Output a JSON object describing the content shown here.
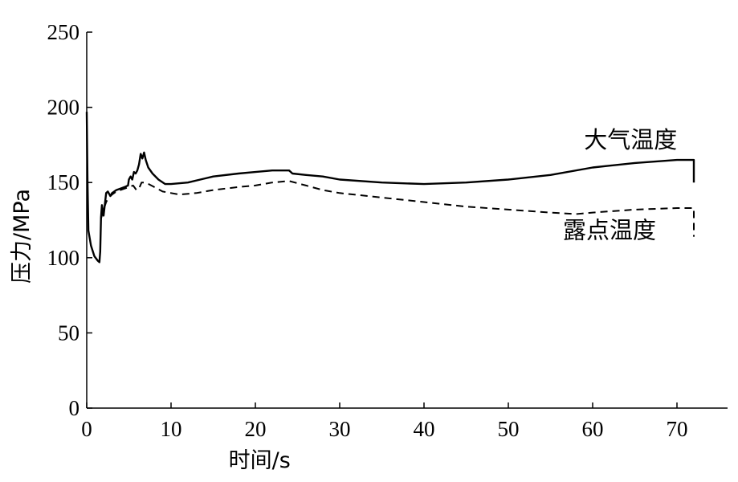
{
  "chart_data": {
    "type": "line",
    "xlabel": "时间/s",
    "ylabel": "压力/MPa",
    "xlim": [
      0,
      76
    ],
    "ylim": [
      0,
      250
    ],
    "xticks": [
      0,
      10,
      20,
      30,
      40,
      50,
      60,
      70
    ],
    "yticks": [
      0,
      50,
      100,
      150,
      200,
      250
    ],
    "grid": false,
    "series": [
      {
        "name": "大气温度",
        "style": "solid",
        "color": "#000000",
        "points": [
          [
            0,
            197
          ],
          [
            0.1,
            150
          ],
          [
            0.2,
            118
          ],
          [
            0.5,
            108
          ],
          [
            0.9,
            101
          ],
          [
            1.3,
            98
          ],
          [
            1.5,
            97
          ],
          [
            1.6,
            104
          ],
          [
            1.7,
            127
          ],
          [
            1.8,
            135
          ],
          [
            2.0,
            128
          ],
          [
            2.2,
            138
          ],
          [
            2.3,
            143
          ],
          [
            2.5,
            144
          ],
          [
            2.8,
            141
          ],
          [
            3.0,
            143
          ],
          [
            3.5,
            145
          ],
          [
            4.0,
            146
          ],
          [
            4.5,
            147
          ],
          [
            4.9,
            148
          ],
          [
            5.0,
            152
          ],
          [
            5.2,
            154
          ],
          [
            5.4,
            152
          ],
          [
            5.6,
            157
          ],
          [
            5.8,
            156
          ],
          [
            6.0,
            158
          ],
          [
            6.2,
            162
          ],
          [
            6.4,
            169
          ],
          [
            6.6,
            166
          ],
          [
            6.8,
            170
          ],
          [
            7.0,
            165
          ],
          [
            7.3,
            160
          ],
          [
            7.8,
            156
          ],
          [
            8.5,
            152
          ],
          [
            9.3,
            149
          ],
          [
            10,
            149
          ],
          [
            12,
            150
          ],
          [
            15,
            154
          ],
          [
            18,
            156
          ],
          [
            20,
            157
          ],
          [
            22,
            158
          ],
          [
            23.5,
            158
          ],
          [
            24.0,
            158
          ],
          [
            24.4,
            156
          ],
          [
            26,
            155
          ],
          [
            28,
            154
          ],
          [
            30,
            152
          ],
          [
            35,
            150
          ],
          [
            40,
            149
          ],
          [
            45,
            150
          ],
          [
            50,
            152
          ],
          [
            55,
            155
          ],
          [
            60,
            160
          ],
          [
            65,
            163
          ],
          [
            70,
            165
          ],
          [
            72,
            165
          ],
          [
            72,
            150
          ]
        ]
      },
      {
        "name": "露点温度",
        "style": "dashed",
        "color": "#000000",
        "points": [
          [
            1.7,
            126
          ],
          [
            2.0,
            132
          ],
          [
            2.3,
            137
          ],
          [
            2.6,
            140
          ],
          [
            3.0,
            142
          ],
          [
            3.5,
            144
          ],
          [
            4.0,
            145
          ],
          [
            4.5,
            146
          ],
          [
            5.0,
            147
          ],
          [
            5.5,
            148
          ],
          [
            5.9,
            145
          ],
          [
            6.2,
            146
          ],
          [
            6.5,
            150
          ],
          [
            7.0,
            150
          ],
          [
            8.0,
            147
          ],
          [
            9.0,
            144
          ],
          [
            10,
            143
          ],
          [
            11,
            142
          ],
          [
            13,
            143
          ],
          [
            15,
            145
          ],
          [
            18,
            147
          ],
          [
            20,
            148
          ],
          [
            22,
            150
          ],
          [
            24,
            151
          ],
          [
            26,
            148
          ],
          [
            28,
            145
          ],
          [
            30,
            143
          ],
          [
            35,
            140
          ],
          [
            40,
            137
          ],
          [
            45,
            134
          ],
          [
            50,
            132
          ],
          [
            55,
            130
          ],
          [
            58,
            129
          ],
          [
            60,
            130
          ],
          [
            65,
            132
          ],
          [
            70,
            133
          ],
          [
            72,
            133
          ],
          [
            72,
            114
          ]
        ]
      }
    ],
    "annotations": [
      {
        "text": "大气温度",
        "x": 64.5,
        "y": 173
      },
      {
        "text": "露点温度",
        "x": 62,
        "y": 113
      }
    ]
  }
}
